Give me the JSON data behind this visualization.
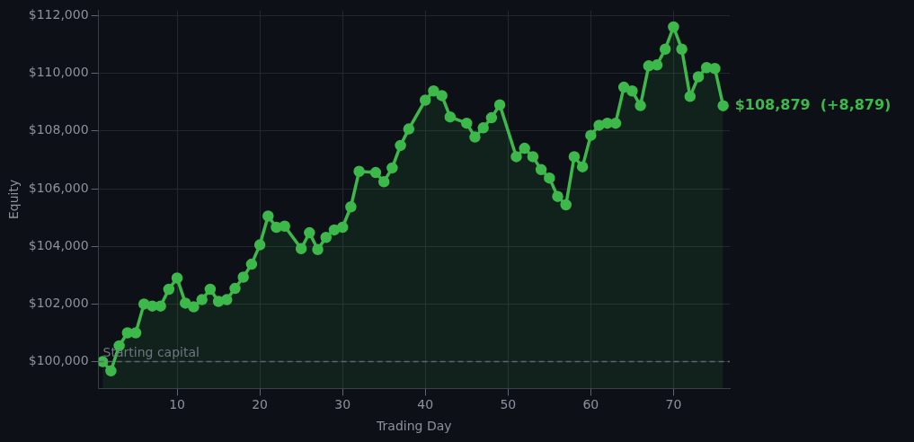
{
  "chart_data": {
    "type": "area",
    "xlabel": "Trading Day",
    "ylabel": "Equity",
    "x": [
      1,
      2,
      3,
      4,
      5,
      6,
      7,
      8,
      9,
      10,
      11,
      12,
      13,
      14,
      15,
      16,
      17,
      18,
      19,
      20,
      21,
      22,
      23,
      25,
      26,
      27,
      28,
      29,
      30,
      31,
      32,
      34,
      35,
      36,
      37,
      38,
      40,
      41,
      42,
      43,
      45,
      46,
      47,
      48,
      49,
      51,
      52,
      53,
      54,
      55,
      56,
      57,
      58,
      59,
      60,
      61,
      62,
      63,
      64,
      65,
      66,
      67,
      68,
      69,
      70,
      71,
      72,
      73,
      74,
      75,
      76
    ],
    "series": [
      {
        "color": "#3cb94a",
        "values": [
          100000,
          99680,
          100550,
          101000,
          101000,
          102000,
          101930,
          101930,
          102510,
          102900,
          102030,
          101900,
          102150,
          102510,
          102090,
          102150,
          102540,
          102930,
          103380,
          104050,
          105050,
          104660,
          104700,
          103920,
          104470,
          103890,
          104310,
          104570,
          104660,
          105370,
          106600,
          106560,
          106240,
          106720,
          107500,
          108070,
          109070,
          109390,
          109230,
          108490,
          108270,
          107790,
          108110,
          108460,
          108910,
          107110,
          107400,
          107110,
          106660,
          106370,
          105730,
          105440,
          107110,
          106760,
          107850,
          108200,
          108270,
          108270,
          109520,
          109390,
          108880,
          110260,
          110290,
          110840,
          111610,
          110840,
          109200,
          109880,
          110200,
          110170,
          108879
        ]
      }
    ],
    "xlim": [
      0.5,
      76.8
    ],
    "ylim": [
      99070,
      112190
    ],
    "xticks": [
      10,
      20,
      30,
      40,
      50,
      60,
      70
    ],
    "yticks": [
      {
        "value": 100000,
        "label": "$100,000"
      },
      {
        "value": 102000,
        "label": "$102,000"
      },
      {
        "value": 104000,
        "label": "$104,000"
      },
      {
        "value": 106000,
        "label": "$106,000"
      },
      {
        "value": 108000,
        "label": "$108,000"
      },
      {
        "value": 110000,
        "label": "$110,000"
      },
      {
        "value": 112000,
        "label": "$112,000"
      }
    ],
    "grid": true,
    "marker": "circle",
    "line_style": "solid",
    "ref_lines": [
      {
        "axis": "y",
        "value": 100000,
        "label": "Starting capital",
        "color": "#5d6670",
        "line_style": "dashed"
      }
    ],
    "annotations": [
      {
        "text": "$108,879  (+8,879)",
        "x": 76,
        "y": 108879
      }
    ]
  }
}
